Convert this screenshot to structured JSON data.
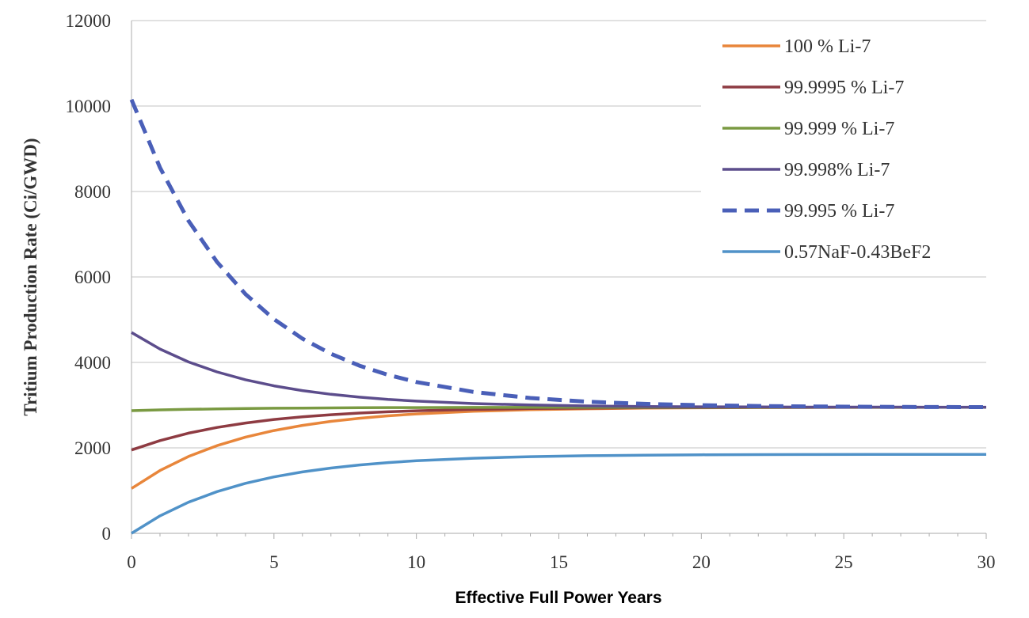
{
  "chart_data": {
    "type": "line",
    "title": "",
    "xlabel": "Effective Full Power Years",
    "ylabel": "Tritium Production Rate (Ci/GWD)",
    "xlim": [
      0,
      30
    ],
    "ylim": [
      0,
      12000
    ],
    "xticks": [
      0,
      5,
      10,
      15,
      20,
      25,
      30
    ],
    "yticks": [
      0,
      2000,
      4000,
      6000,
      8000,
      10000,
      12000
    ],
    "grid": "horizontal",
    "legend_position": "top-right",
    "x": [
      0,
      1,
      2,
      3,
      4,
      5,
      6,
      7,
      8,
      9,
      10,
      12,
      14,
      16,
      18,
      20,
      22,
      24,
      26,
      28,
      30
    ],
    "series": [
      {
        "name": "100 % Li-7",
        "color": "#e8863b",
        "dash": false,
        "values": [
          1050,
          1470,
          1798,
          2052,
          2251,
          2406,
          2526,
          2620,
          2693,
          2750,
          2794,
          2855,
          2893,
          2915,
          2929,
          2937,
          2942,
          2945,
          2947,
          2948,
          2949
        ]
      },
      {
        "name": "99.9995 % Li-7",
        "color": "#8e3b42",
        "dash": false,
        "values": [
          1950,
          2171,
          2344,
          2478,
          2582,
          2664,
          2727,
          2776,
          2815,
          2845,
          2868,
          2900,
          2920,
          2932,
          2939,
          2943,
          2946,
          2948,
          2948,
          2949,
          2949
        ]
      },
      {
        "name": "99.999 % Li-7",
        "color": "#7a9a42",
        "dash": false,
        "values": [
          2870,
          2888,
          2901,
          2912,
          2921,
          2927,
          2932,
          2936,
          2939,
          2942,
          2943,
          2946,
          2948,
          2949,
          2949,
          2950,
          2950,
          2950,
          2950,
          2950,
          2950
        ]
      },
      {
        "name": "99.998% Li-7",
        "color": "#5c4d8c",
        "dash": false,
        "values": [
          4700,
          4313,
          4011,
          3777,
          3594,
          3451,
          3340,
          3254,
          3187,
          3134,
          3094,
          3037,
          3003,
          2982,
          2969,
          2962,
          2957,
          2954,
          2953,
          2952,
          2951
        ]
      },
      {
        "name": "99.995 % Li-7",
        "color": "#4a5fb8",
        "dash": true,
        "values": [
          10150,
          8557,
          7317,
          6351,
          5599,
          5013,
          4556,
          4201,
          3924,
          3709,
          3541,
          3309,
          3167,
          3080,
          3030,
          2998,
          2980,
          2968,
          2961,
          2956,
          2954
        ]
      },
      {
        "name": "0.57NaF-0.43BeF2",
        "color": "#5092c8",
        "dash": false,
        "values": [
          0,
          409,
          728,
          976,
          1170,
          1320,
          1437,
          1528,
          1600,
          1655,
          1698,
          1758,
          1794,
          1816,
          1829,
          1838,
          1842,
          1845,
          1847,
          1848,
          1849
        ]
      }
    ]
  }
}
